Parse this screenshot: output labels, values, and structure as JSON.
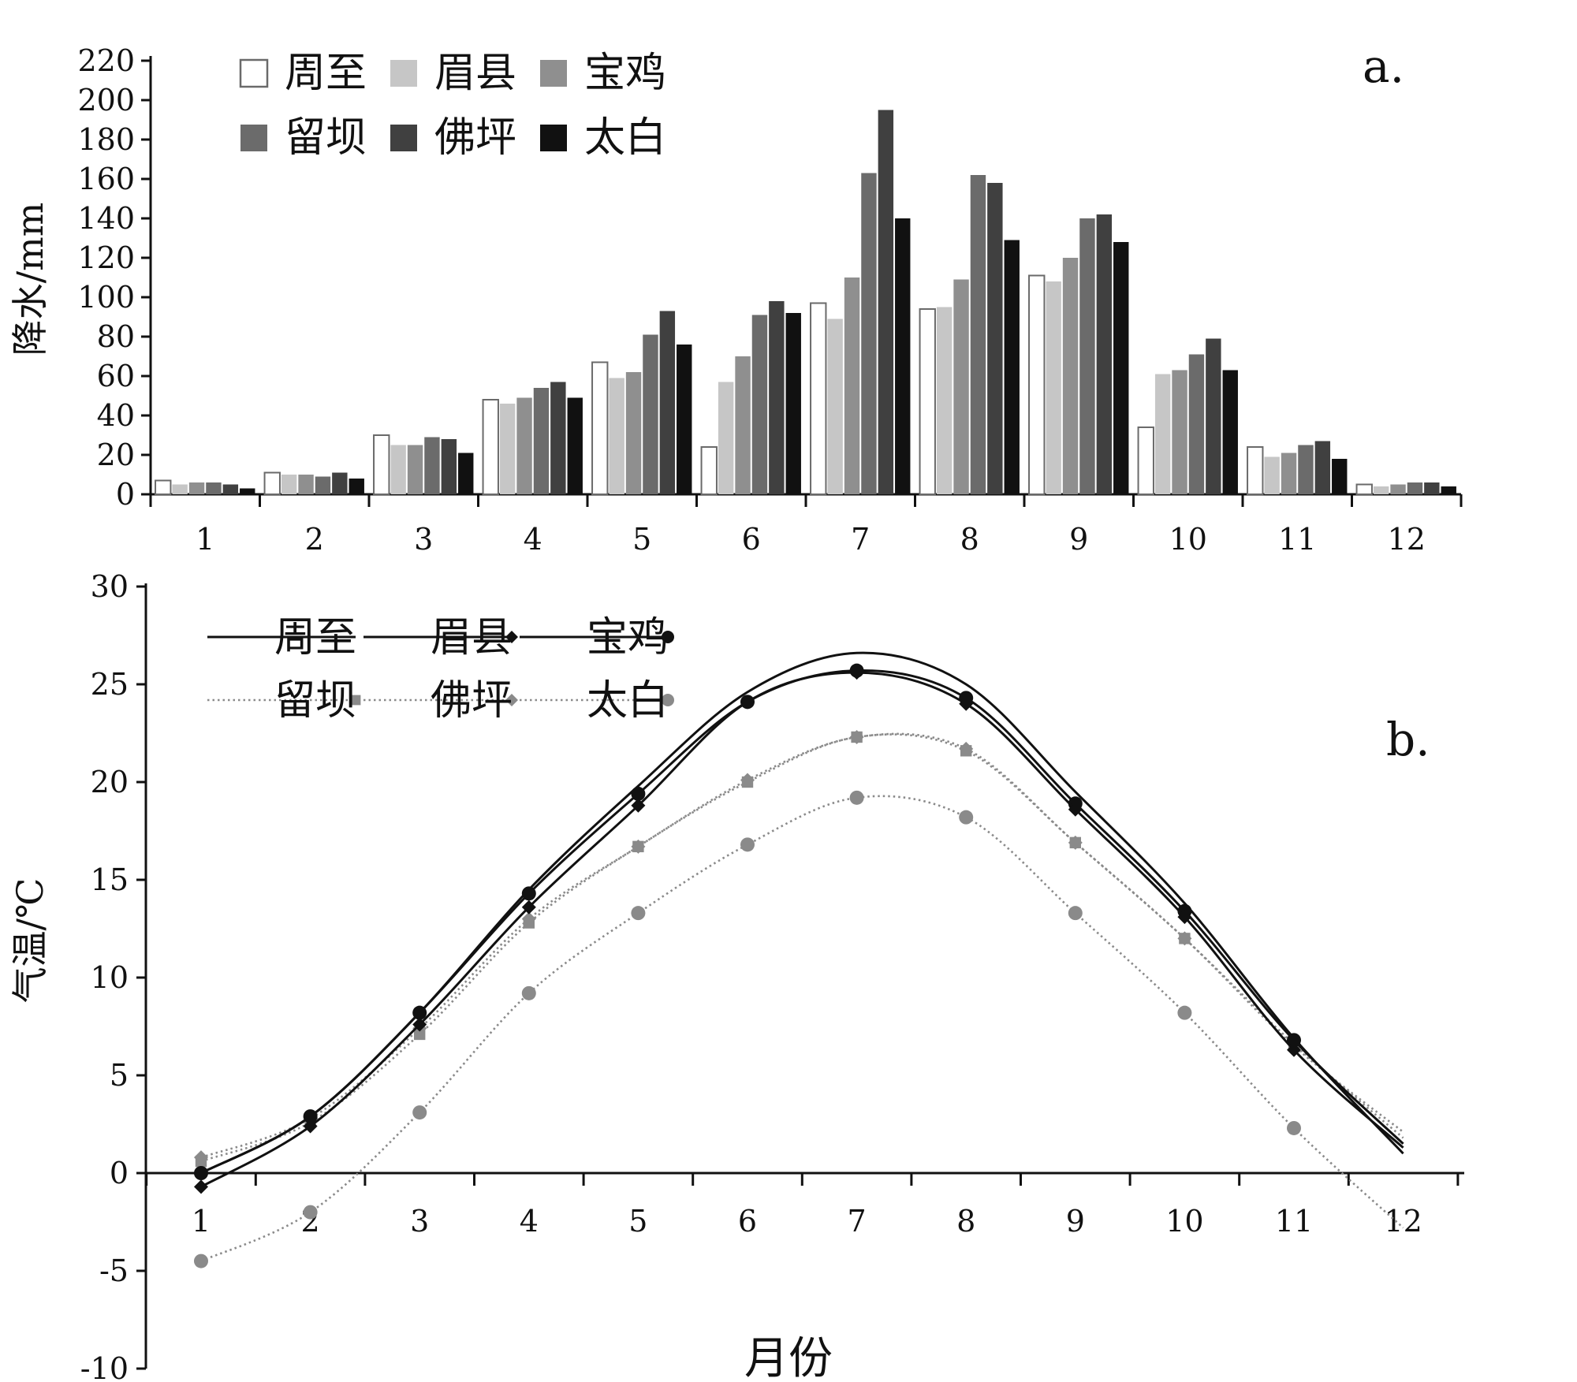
{
  "chart_data": [
    {
      "panel": "a.",
      "type": "bar",
      "ylabel": "降水/mm",
      "xlabel": "",
      "ylim": [
        0,
        220
      ],
      "yticks": [
        "0",
        "20",
        "40",
        "60",
        "80",
        "100",
        "120",
        "140",
        "160",
        "180",
        "200",
        "220"
      ],
      "categories": [
        "1",
        "2",
        "3",
        "4",
        "5",
        "6",
        "7",
        "8",
        "9",
        "10",
        "11",
        "12"
      ],
      "legend_placement": "top-left",
      "series": [
        {
          "name": "周至",
          "color": "#ffffff",
          "values": [
            7,
            11,
            30,
            48,
            67,
            24,
            97,
            94,
            111,
            34,
            24,
            5
          ]
        },
        {
          "name": "眉县",
          "color": "#c6c6c6",
          "values": [
            5,
            10,
            25,
            46,
            59,
            57,
            89,
            95,
            108,
            61,
            19,
            4
          ]
        },
        {
          "name": "宝鸡",
          "color": "#8f8f8f",
          "values": [
            6,
            10,
            25,
            49,
            62,
            70,
            110,
            109,
            120,
            63,
            21,
            5
          ]
        },
        {
          "name": "留坝",
          "color": "#6b6b6b",
          "values": [
            6,
            9,
            29,
            54,
            81,
            91,
            163,
            162,
            140,
            71,
            25,
            6
          ]
        },
        {
          "name": "佛坪",
          "color": "#404040",
          "values": [
            5,
            11,
            28,
            57,
            93,
            98,
            195,
            158,
            142,
            79,
            27,
            6
          ]
        },
        {
          "name": "太白",
          "color": "#111111",
          "values": [
            3,
            8,
            21,
            49,
            76,
            92,
            140,
            129,
            128,
            63,
            18,
            4
          ]
        }
      ]
    },
    {
      "panel": "b.",
      "type": "line",
      "ylabel": "气温/℃",
      "xlabel": "月份",
      "ylim": [
        -10,
        30
      ],
      "yticks": [
        "-10",
        "-5",
        "0",
        "5",
        "10",
        "15",
        "20",
        "25",
        "30"
      ],
      "x": [
        1,
        2,
        3,
        4,
        5,
        6,
        7,
        8,
        9,
        10,
        11,
        12
      ],
      "xticks": [
        "1",
        "2",
        "3",
        "4",
        "5",
        "6",
        "7",
        "8",
        "9",
        "10",
        "11",
        "12"
      ],
      "legend_placement": "top-left",
      "series": [
        {
          "name": "周至",
          "style": "solid",
          "marker": "none",
          "color": "#111111",
          "values": [
            0.0,
            2.9,
            8.2,
            14.5,
            19.8,
            24.6,
            26.6,
            25.0,
            19.5,
            13.8,
            6.9,
            1.0
          ]
        },
        {
          "name": "眉县",
          "style": "solid",
          "marker": "diamond",
          "color": "#111111",
          "values": [
            -0.7,
            2.4,
            7.6,
            13.6,
            18.8,
            24.1,
            25.6,
            24.0,
            18.6,
            13.1,
            6.3,
            1.3
          ]
        },
        {
          "name": "宝鸡",
          "style": "solid",
          "marker": "circle",
          "color": "#111111",
          "values": [
            0.0,
            2.9,
            8.2,
            14.3,
            19.4,
            24.1,
            25.7,
            24.3,
            18.9,
            13.4,
            6.8,
            1.5
          ]
        },
        {
          "name": "留坝",
          "style": "dotted",
          "marker": "square",
          "color": "#8a8a8a",
          "values": [
            0.6,
            2.6,
            7.1,
            12.8,
            16.7,
            20.0,
            22.3,
            21.6,
            16.9,
            12.0,
            6.5,
            2.1
          ]
        },
        {
          "name": "佛坪",
          "style": "dotted",
          "marker": "diamond",
          "color": "#8a8a8a",
          "values": [
            0.8,
            2.8,
            7.4,
            13.0,
            16.7,
            20.1,
            22.3,
            21.7,
            16.9,
            12.0,
            6.6,
            1.8
          ]
        },
        {
          "name": "太白",
          "style": "dotted",
          "marker": "circle",
          "color": "#8a8a8a",
          "values": [
            -4.5,
            -2.0,
            3.1,
            9.2,
            13.3,
            16.8,
            19.2,
            18.2,
            13.3,
            8.2,
            2.3,
            -2.8
          ]
        }
      ]
    }
  ]
}
